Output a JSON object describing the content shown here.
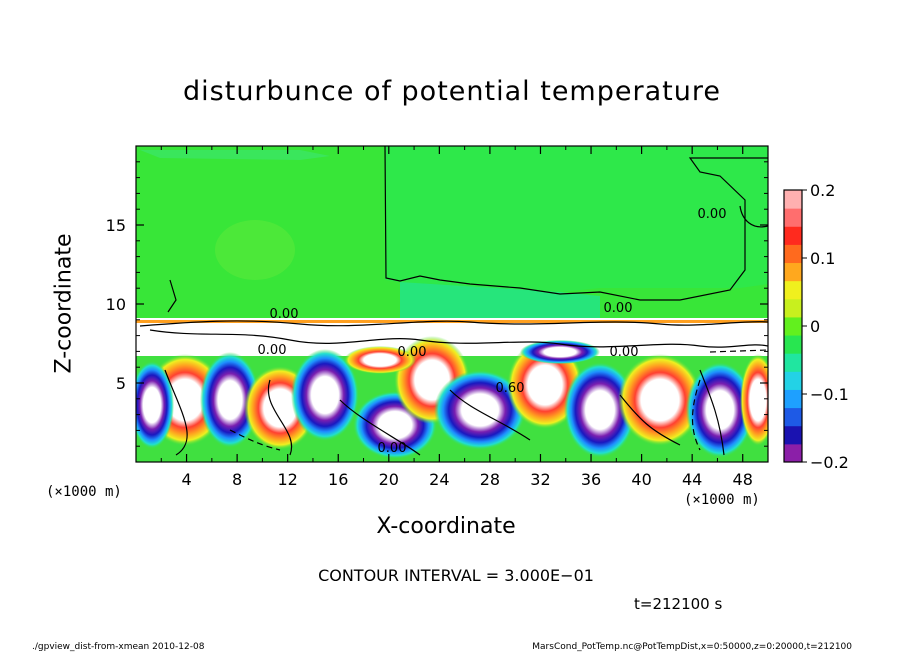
{
  "chart_data": {
    "type": "heatmap",
    "title": "disturbunce of potential temperature",
    "xlabel": "X-coordinate",
    "ylabel": "Z-coordinate",
    "x_unit_label": "(×1000 m)",
    "x_unit_label_right": "(×1000 m)",
    "xlim": [
      0,
      50
    ],
    "ylim": [
      0,
      20
    ],
    "x_ticks": [
      "4",
      "8",
      "12",
      "16",
      "20",
      "24",
      "28",
      "32",
      "36",
      "40",
      "44",
      "48"
    ],
    "y_ticks": [
      "5",
      "10",
      "15"
    ],
    "colorbar": {
      "range": [
        -0.2,
        0.2
      ],
      "tick_labels": [
        "0.2",
        "0.1",
        "0",
        "−0.1",
        "−0.2"
      ],
      "colors": [
        "#8b1fa8",
        "#1a12b0",
        "#1e5ae6",
        "#1ea0ff",
        "#23d2e6",
        "#20e6a0",
        "#28e650",
        "#62f01e",
        "#c8f01e",
        "#f0f01e",
        "#ffa81e",
        "#ff6a1e",
        "#ff2a1e",
        "#ff6e6e",
        "#ffb0b0"
      ]
    },
    "contour_labels": [
      "0.00",
      "0.00",
      "0.00",
      "0.00",
      "0.00",
      "0.60",
      "0.00",
      "0.00"
    ],
    "contour_interval": "CONTOUR INTERVAL = 3.000E−01",
    "time": "t=212100 s"
  },
  "footer": {
    "left": "./gpview_dist-from-xmean  2010-12-08",
    "right": "MarsCond_PotTemp.nc@PotTempDist,x=0:50000,z=0:20000,t=212100"
  }
}
